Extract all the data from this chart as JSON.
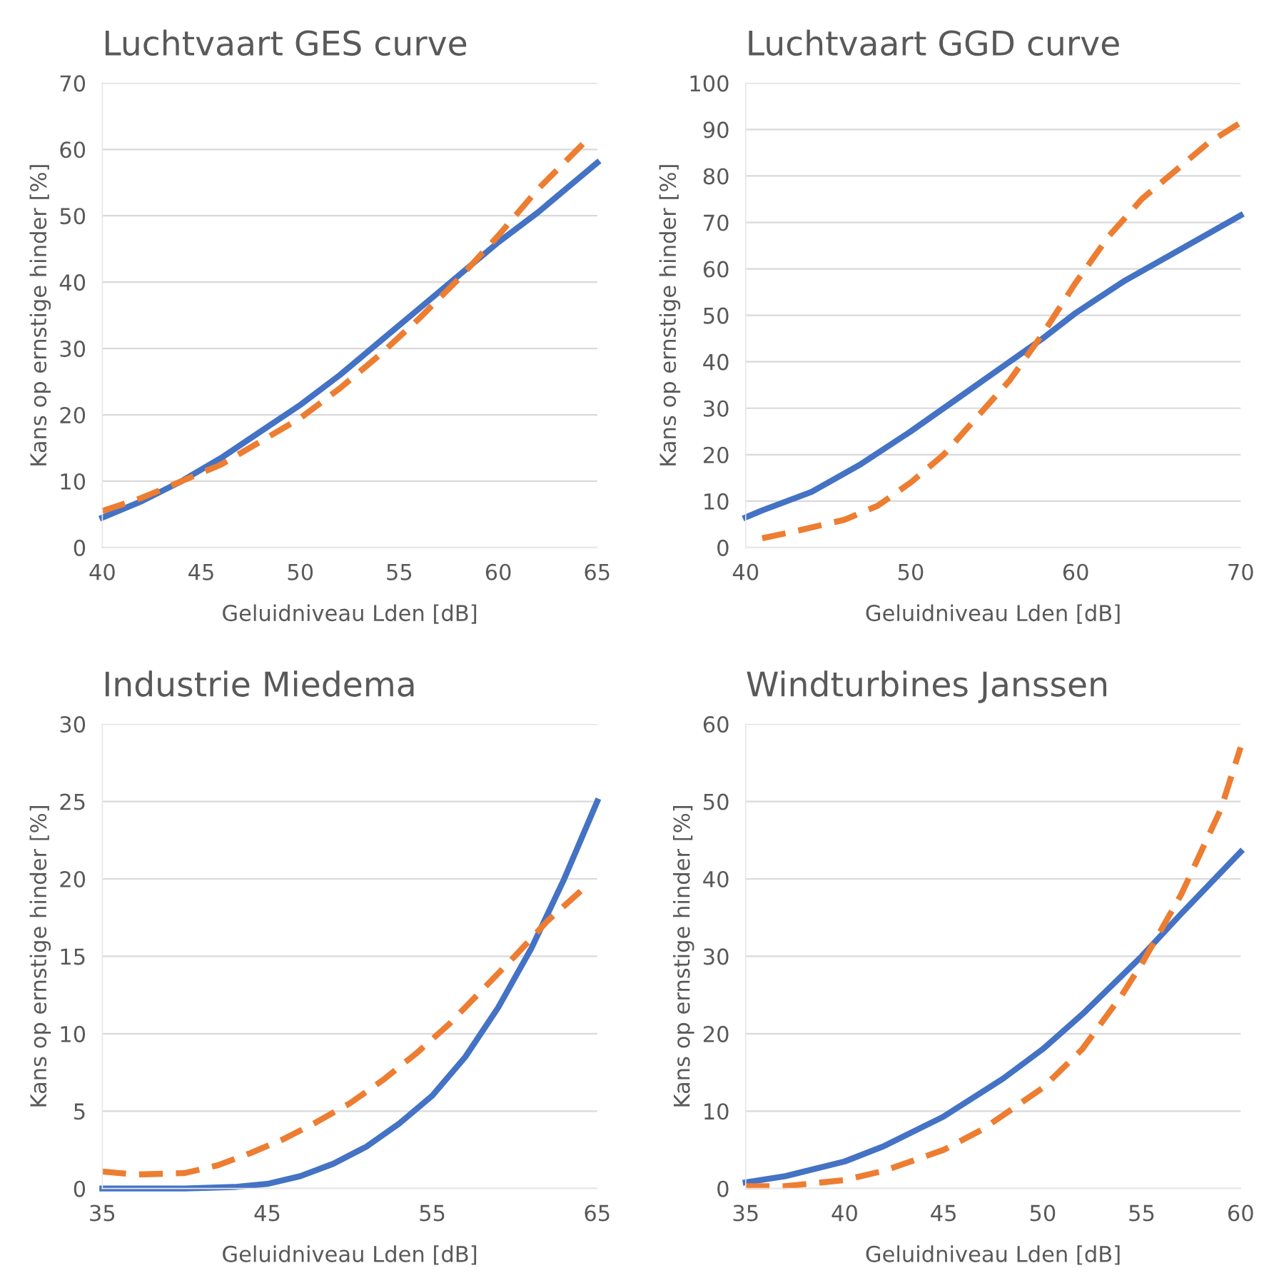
{
  "chart_data": [
    {
      "type": "line",
      "title": "Luchtvaart GES curve",
      "xlabel": "Geluidniveau Lden [dB]",
      "ylabel": "Kans op ernstige hinder [%]",
      "xlim": [
        40,
        65
      ],
      "xticks": [
        40,
        45,
        50,
        55,
        60,
        65
      ],
      "ylim": [
        0,
        70
      ],
      "yticks": [
        0,
        10,
        20,
        30,
        40,
        50,
        60,
        70
      ],
      "grid": "y",
      "series": [
        {
          "color": "#4472c4",
          "line_style": "solid",
          "x": [
            40,
            42,
            44,
            46,
            48,
            50,
            52,
            54,
            56,
            58,
            60,
            62,
            64,
            65
          ],
          "values": [
            4.5,
            7,
            10,
            13.5,
            17.5,
            21.5,
            26,
            31,
            36,
            41,
            46,
            50.5,
            55.5,
            58
          ]
        },
        {
          "color": "#ed7d31",
          "line_style": "dashed",
          "x": [
            40,
            42,
            44,
            46,
            48,
            50,
            52,
            54,
            56,
            58,
            60,
            62,
            64.5
          ],
          "values": [
            5.5,
            7.5,
            10,
            12.5,
            16,
            19.5,
            24,
            29,
            34.5,
            40.5,
            47,
            54,
            61.5
          ]
        }
      ]
    },
    {
      "type": "line",
      "title": "Luchtvaart GGD curve",
      "xlabel": "Geluidniveau Lden [dB]",
      "ylabel": "Kans op ernstige hinder [%]",
      "xlim": [
        40,
        70
      ],
      "xticks": [
        40,
        50,
        60,
        70
      ],
      "ylim": [
        0,
        100
      ],
      "yticks": [
        0,
        10,
        20,
        30,
        40,
        50,
        60,
        70,
        80,
        90,
        100
      ],
      "grid": "y",
      "series": [
        {
          "color": "#4472c4",
          "line_style": "solid",
          "x": [
            40,
            41,
            44,
            47,
            50,
            53,
            56,
            58,
            60,
            63,
            66,
            70
          ],
          "values": [
            6.5,
            8,
            12,
            18,
            25,
            32.5,
            40,
            45,
            50.5,
            57.5,
            63.5,
            71.5
          ]
        },
        {
          "color": "#ed7d31",
          "line_style": "dashed",
          "x": [
            41,
            43,
            46,
            48,
            50,
            52,
            54,
            56,
            58,
            60,
            62,
            64,
            66,
            68,
            70
          ],
          "values": [
            2,
            3.5,
            6,
            9,
            14,
            20,
            28,
            36,
            46,
            57,
            67,
            75,
            81,
            87,
            91.5
          ]
        }
      ]
    },
    {
      "type": "line",
      "title": "Industrie Miedema",
      "xlabel": "Geluidniveau Lden [dB]",
      "ylabel": "Kans op ernstige hinder [%]",
      "xlim": [
        35,
        65
      ],
      "xticks": [
        35,
        45,
        55,
        65
      ],
      "ylim": [
        0,
        30
      ],
      "yticks": [
        0,
        5,
        10,
        15,
        20,
        25,
        30
      ],
      "grid": "y",
      "series": [
        {
          "color": "#4472c4",
          "line_style": "solid",
          "x": [
            35,
            40,
            43,
            45,
            47,
            49,
            51,
            53,
            55,
            57,
            59,
            61,
            63,
            65
          ],
          "values": [
            0,
            0,
            0.1,
            0.3,
            0.8,
            1.6,
            2.7,
            4.2,
            6,
            8.5,
            11.7,
            15.5,
            20,
            25
          ]
        },
        {
          "color": "#ed7d31",
          "line_style": "dashed",
          "x": [
            35,
            37,
            40,
            42,
            44,
            46,
            48,
            50,
            52,
            54,
            56,
            58,
            60,
            62,
            64.3
          ],
          "values": [
            1.1,
            0.9,
            1.0,
            1.5,
            2.3,
            3.2,
            4.3,
            5.5,
            7,
            8.7,
            10.6,
            12.8,
            15,
            17.3,
            19.5
          ]
        }
      ]
    },
    {
      "type": "line",
      "title": "Windturbines Janssen",
      "xlabel": "Geluidniveau Lden [dB]",
      "ylabel": "Kans op ernstige hinder [%]",
      "xlim": [
        35,
        60
      ],
      "xticks": [
        35,
        40,
        45,
        50,
        55,
        60
      ],
      "ylim": [
        0,
        60
      ],
      "yticks": [
        0,
        10,
        20,
        30,
        40,
        50,
        60
      ],
      "grid": "y",
      "series": [
        {
          "color": "#4472c4",
          "line_style": "solid",
          "x": [
            35,
            37,
            40,
            42,
            45,
            48,
            50,
            52,
            55,
            57,
            60
          ],
          "values": [
            0.8,
            1.6,
            3.5,
            5.5,
            9.3,
            14.2,
            18,
            22.5,
            30,
            35.5,
            43.5
          ]
        },
        {
          "color": "#ed7d31",
          "line_style": "dashed",
          "x": [
            35,
            37,
            40,
            42,
            45,
            47,
            50,
            52,
            54,
            55,
            57,
            59,
            60
          ],
          "values": [
            0.3,
            0.3,
            1.1,
            2.3,
            5,
            7.7,
            13,
            18,
            25,
            29,
            38,
            49,
            57
          ]
        }
      ]
    }
  ]
}
